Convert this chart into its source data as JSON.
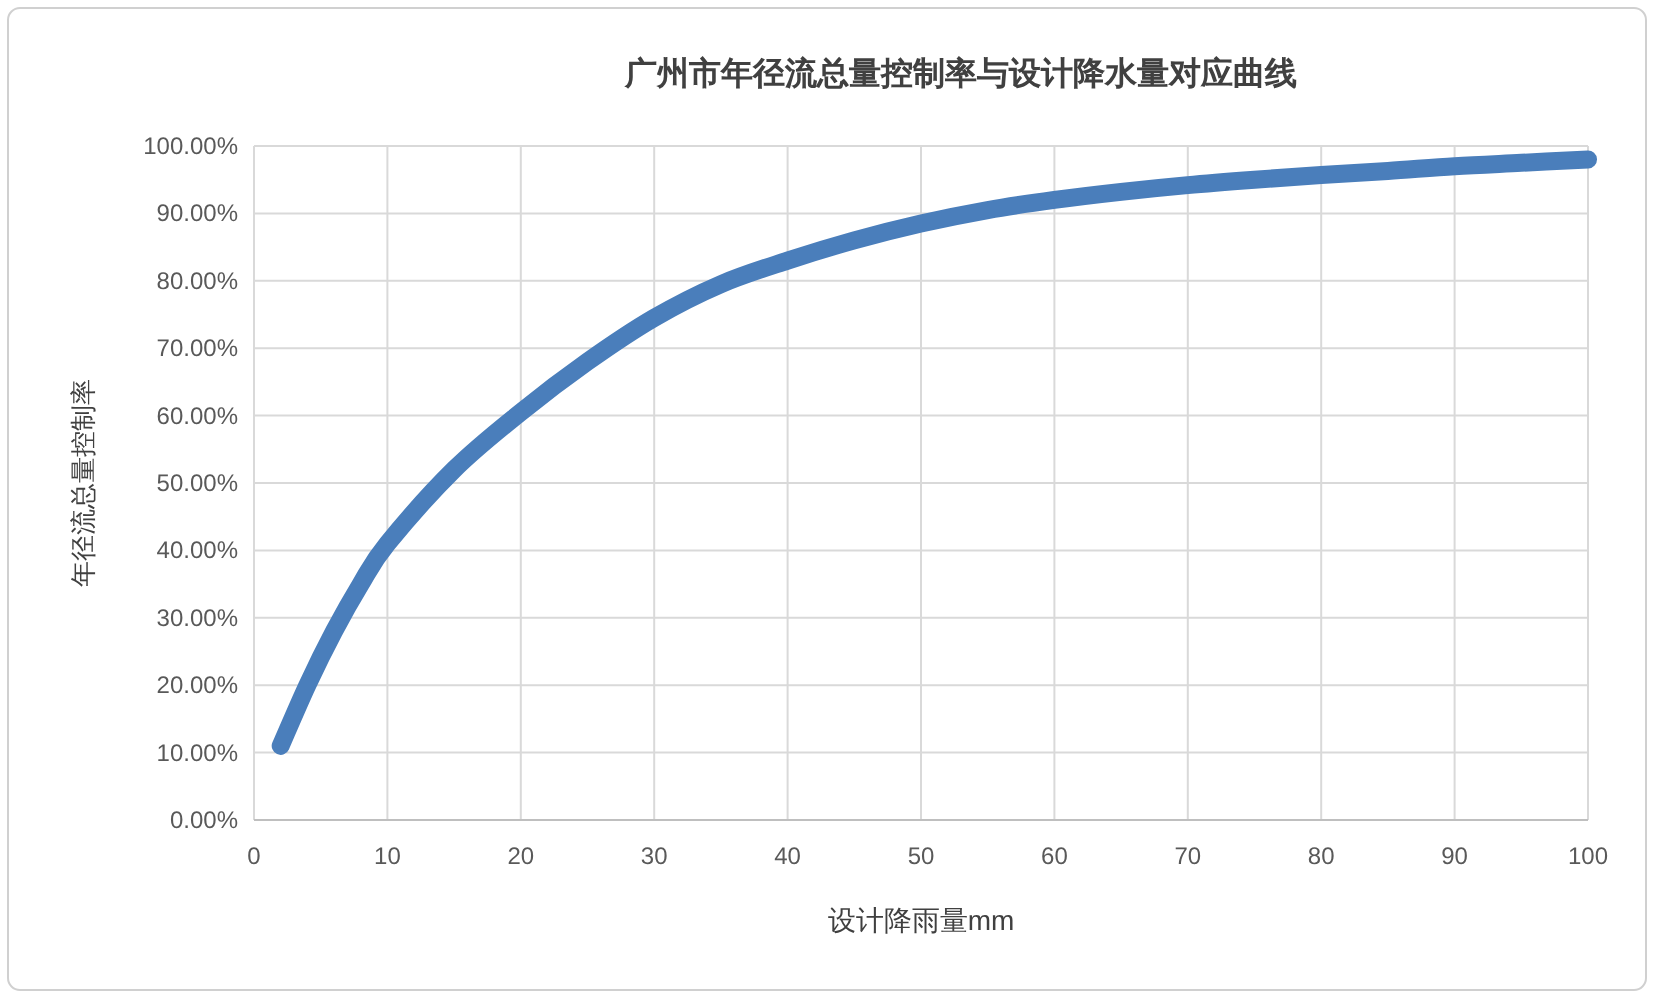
{
  "chart_data": {
    "type": "line",
    "title": "广州市年径流总量控制率与设计降水量对应曲线",
    "xlabel": "设计降雨量mm",
    "ylabel": "年径流总量控制率",
    "x": [
      2,
      4,
      6,
      8,
      10,
      15,
      20,
      25,
      30,
      35,
      40,
      45,
      50,
      55,
      60,
      65,
      70,
      75,
      80,
      85,
      90,
      95,
      100
    ],
    "series": [
      {
        "color": "#4a7ebb",
        "values": [
          11,
          20,
          28,
          35,
          41,
          52,
          60.5,
          68,
          74.5,
          79.5,
          83,
          86,
          88.5,
          90.5,
          92,
          93.2,
          94.2,
          95,
          95.7,
          96.3,
          97,
          97.5,
          98
        ]
      }
    ],
    "xlim": [
      0,
      100
    ],
    "xticks": [
      0,
      10,
      20,
      30,
      40,
      50,
      60,
      70,
      80,
      90,
      100
    ],
    "ylim": [
      0,
      100
    ],
    "yticks": [
      {
        "value": 0,
        "label": "0.00%"
      },
      {
        "value": 10,
        "label": "10.00%"
      },
      {
        "value": 20,
        "label": "20.00%"
      },
      {
        "value": 30,
        "label": "30.00%"
      },
      {
        "value": 40,
        "label": "40.00%"
      },
      {
        "value": 50,
        "label": "50.00%"
      },
      {
        "value": 60,
        "label": "60.00%"
      },
      {
        "value": 70,
        "label": "70.00%"
      },
      {
        "value": 80,
        "label": "80.00%"
      },
      {
        "value": 90,
        "label": "90.00%"
      },
      {
        "value": 100,
        "label": "100.00%"
      }
    ],
    "grid": true,
    "marker": "none",
    "line_style": "solid"
  }
}
